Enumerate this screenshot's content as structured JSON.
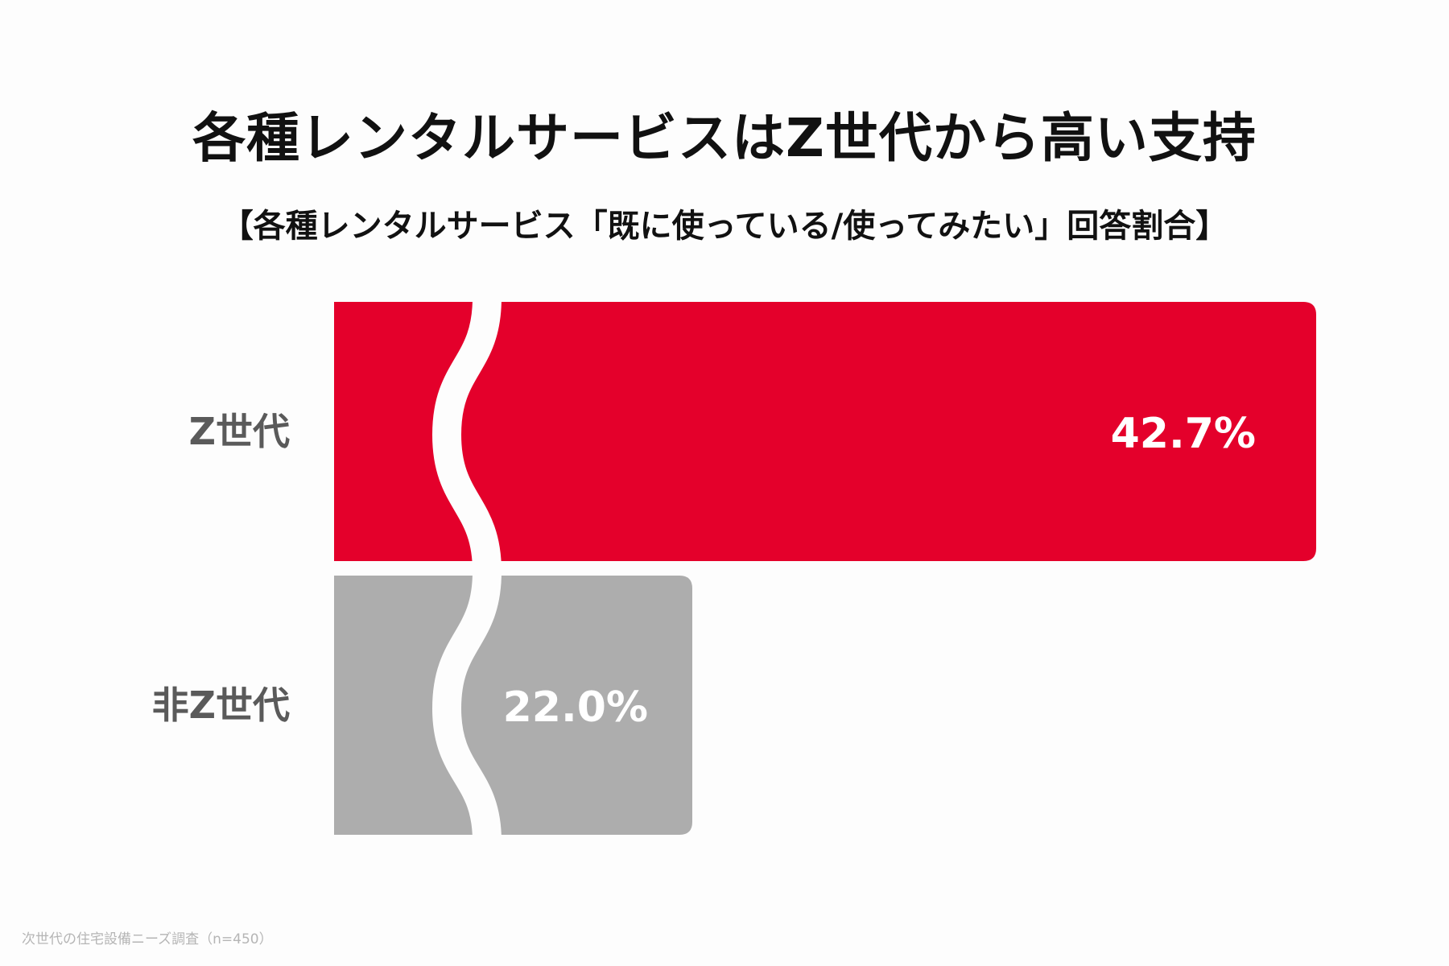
{
  "title": "各種レンタルサービスはZ世代から高い支持",
  "subtitle": "【各種レンタルサービス「既に使っている/使ってみたい」回答割合】",
  "source": "次世代の住宅設備ニーズ調査（n=450）",
  "colors": {
    "z_generation": "#e4002b",
    "non_z_generation": "#adadad",
    "label_text": "#5a5a5a",
    "value_text": "#ffffff"
  },
  "chart_data": {
    "type": "bar",
    "orientation": "horizontal",
    "axis_break": true,
    "categories": [
      "Z世代",
      "非Z世代"
    ],
    "values": [
      42.7,
      22.0
    ],
    "value_labels": [
      "42.7%",
      "22.0%"
    ],
    "unit": "%",
    "title": "各種レンタルサービスはZ世代から高い支持",
    "subtitle": "【各種レンタルサービス「既に使っている/使ってみたい」回答割合】"
  }
}
